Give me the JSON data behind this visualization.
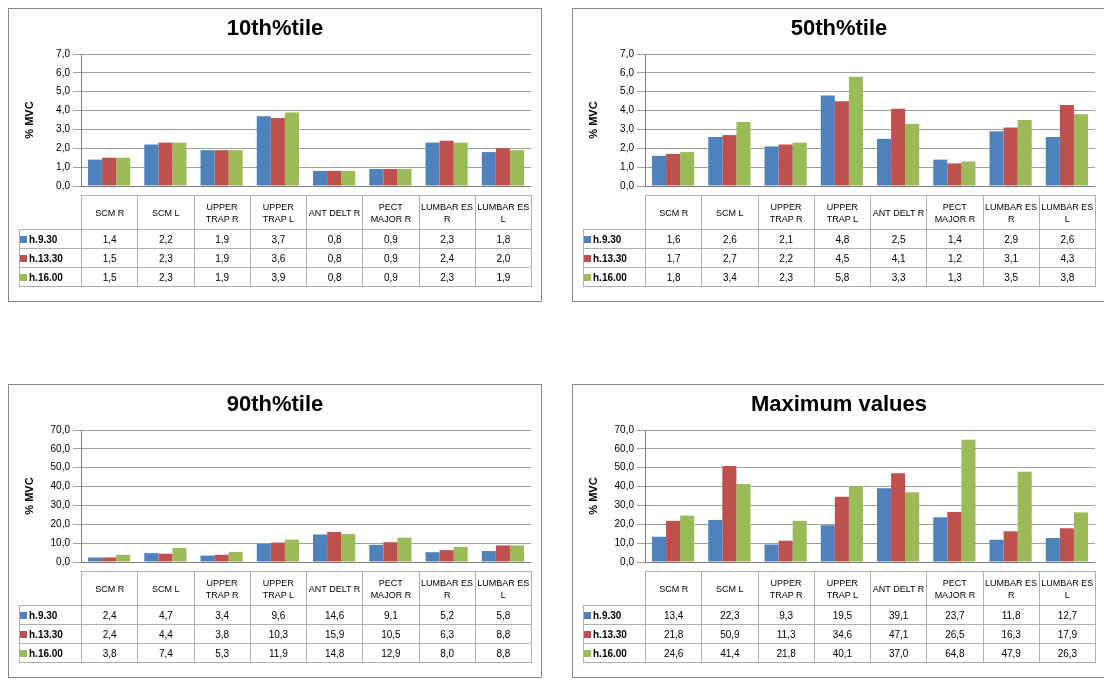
{
  "chart_data": [
    {
      "type": "bar",
      "title": "10th%tile",
      "ylabel": "% MVC",
      "categories": [
        "SCM R",
        "SCM L",
        "UPPER TRAP R",
        "UPPER TRAP L",
        "ANT DELT R",
        "PECT MAJOR R",
        "LUMBAR ES R",
        "LUMBAR ES L"
      ],
      "series": [
        {
          "name": "h.9.30",
          "color": "#4f81bd",
          "values": [
            1.4,
            2.2,
            1.9,
            3.7,
            0.8,
            0.9,
            2.3,
            1.8
          ],
          "value_labels": [
            "1,4",
            "2,2",
            "1,9",
            "3,7",
            "0,8",
            "0,9",
            "2,3",
            "1,8"
          ]
        },
        {
          "name": "h.13.30",
          "color": "#c0504d",
          "values": [
            1.5,
            2.3,
            1.9,
            3.6,
            0.8,
            0.9,
            2.4,
            2.0
          ],
          "value_labels": [
            "1,5",
            "2,3",
            "1,9",
            "3,6",
            "0,8",
            "0,9",
            "2,4",
            "2,0"
          ]
        },
        {
          "name": "h.16.00",
          "color": "#9bbb59",
          "values": [
            1.5,
            2.3,
            1.9,
            3.9,
            0.8,
            0.9,
            2.3,
            1.9
          ],
          "value_labels": [
            "1,5",
            "2,3",
            "1,9",
            "3,9",
            "0,8",
            "0,9",
            "2,3",
            "1,9"
          ]
        }
      ],
      "ylim": [
        0,
        7
      ],
      "yticks": [
        {
          "value": 0,
          "label": "0,0"
        },
        {
          "value": 1,
          "label": "1,0"
        },
        {
          "value": 2,
          "label": "2,0"
        },
        {
          "value": 3,
          "label": "3,0"
        },
        {
          "value": 4,
          "label": "4,0"
        },
        {
          "value": 5,
          "label": "5,0"
        },
        {
          "value": 6,
          "label": "6,0"
        },
        {
          "value": 7,
          "label": "7,0"
        }
      ],
      "grid": "y",
      "legend": "bottom"
    },
    {
      "type": "bar",
      "title": "50th%tile",
      "ylabel": "% MVC",
      "categories": [
        "SCM R",
        "SCM L",
        "UPPER TRAP R",
        "UPPER TRAP L",
        "ANT DELT R",
        "PECT MAJOR R",
        "LUMBAR ES R",
        "LUMBAR ES L"
      ],
      "series": [
        {
          "name": "h.9.30",
          "color": "#4f81bd",
          "values": [
            1.6,
            2.6,
            2.1,
            4.8,
            2.5,
            1.4,
            2.9,
            2.6
          ],
          "value_labels": [
            "1,6",
            "2,6",
            "2,1",
            "4,8",
            "2,5",
            "1,4",
            "2,9",
            "2,6"
          ]
        },
        {
          "name": "h.13.30",
          "color": "#c0504d",
          "values": [
            1.7,
            2.7,
            2.2,
            4.5,
            4.1,
            1.2,
            3.1,
            4.3
          ],
          "value_labels": [
            "1,7",
            "2,7",
            "2,2",
            "4,5",
            "4,1",
            "1,2",
            "3,1",
            "4,3"
          ]
        },
        {
          "name": "h.16.00",
          "color": "#9bbb59",
          "values": [
            1.8,
            3.4,
            2.3,
            5.8,
            3.3,
            1.3,
            3.5,
            3.8
          ],
          "value_labels": [
            "1,8",
            "3,4",
            "2,3",
            "5,8",
            "3,3",
            "1,3",
            "3,5",
            "3,8"
          ]
        }
      ],
      "ylim": [
        0,
        7
      ],
      "yticks": [
        {
          "value": 0,
          "label": "0,0"
        },
        {
          "value": 1,
          "label": "1,0"
        },
        {
          "value": 2,
          "label": "2,0"
        },
        {
          "value": 3,
          "label": "3,0"
        },
        {
          "value": 4,
          "label": "4,0"
        },
        {
          "value": 5,
          "label": "5,0"
        },
        {
          "value": 6,
          "label": "6,0"
        },
        {
          "value": 7,
          "label": "7,0"
        }
      ],
      "grid": "y",
      "legend": "bottom"
    },
    {
      "type": "bar",
      "title": "90th%tile",
      "ylabel": "% MVC",
      "categories": [
        "SCM R",
        "SCM L",
        "UPPER TRAP R",
        "UPPER TRAP L",
        "ANT DELT R",
        "PECT MAJOR R",
        "LUMBAR ES R",
        "LUMBAR ES L"
      ],
      "series": [
        {
          "name": "h.9.30",
          "color": "#4f81bd",
          "values": [
            2.4,
            4.7,
            3.4,
            9.6,
            14.6,
            9.1,
            5.2,
            5.8
          ],
          "value_labels": [
            "2,4",
            "4,7",
            "3,4",
            "9,6",
            "14,6",
            "9,1",
            "5,2",
            "5,8"
          ]
        },
        {
          "name": "h.13.30",
          "color": "#c0504d",
          "values": [
            2.4,
            4.4,
            3.8,
            10.3,
            15.9,
            10.5,
            6.3,
            8.8
          ],
          "value_labels": [
            "2,4",
            "4,4",
            "3,8",
            "10,3",
            "15,9",
            "10,5",
            "6,3",
            "8,8"
          ]
        },
        {
          "name": "h.16.00",
          "color": "#9bbb59",
          "values": [
            3.8,
            7.4,
            5.3,
            11.9,
            14.8,
            12.9,
            8.0,
            8.8
          ],
          "value_labels": [
            "3,8",
            "7,4",
            "5,3",
            "11,9",
            "14,8",
            "12,9",
            "8,0",
            "8,8"
          ]
        }
      ],
      "ylim": [
        0,
        70
      ],
      "yticks": [
        {
          "value": 0,
          "label": "0,0"
        },
        {
          "value": 10,
          "label": "10,0"
        },
        {
          "value": 20,
          "label": "20,0"
        },
        {
          "value": 30,
          "label": "30,0"
        },
        {
          "value": 40,
          "label": "40,0"
        },
        {
          "value": 50,
          "label": "50,0"
        },
        {
          "value": 60,
          "label": "60,0"
        },
        {
          "value": 70,
          "label": "70,0"
        }
      ],
      "grid": "y",
      "legend": "bottom"
    },
    {
      "type": "bar",
      "title": "Maximum values",
      "ylabel": "% MVC",
      "categories": [
        "SCM R",
        "SCM L",
        "UPPER TRAP R",
        "UPPER TRAP L",
        "ANT DELT R",
        "PECT MAJOR R",
        "LUMBAR ES R",
        "LUMBAR ES L"
      ],
      "series": [
        {
          "name": "h.9.30",
          "color": "#4f81bd",
          "values": [
            13.4,
            22.3,
            9.3,
            19.5,
            39.1,
            23.7,
            11.8,
            12.7
          ],
          "value_labels": [
            "13,4",
            "22,3",
            "9,3",
            "19,5",
            "39,1",
            "23,7",
            "11,8",
            "12,7"
          ]
        },
        {
          "name": "h.13.30",
          "color": "#c0504d",
          "values": [
            21.8,
            50.9,
            11.3,
            34.6,
            47.1,
            26.5,
            16.3,
            17.9
          ],
          "value_labels": [
            "21,8",
            "50,9",
            "11,3",
            "34,6",
            "47,1",
            "26,5",
            "16,3",
            "17,9"
          ]
        },
        {
          "name": "h.16.00",
          "color": "#9bbb59",
          "values": [
            24.6,
            41.4,
            21.8,
            40.1,
            37.0,
            64.8,
            47.9,
            26.3
          ],
          "value_labels": [
            "24,6",
            "41,4",
            "21,8",
            "40,1",
            "37,0",
            "64,8",
            "47,9",
            "26,3"
          ]
        }
      ],
      "ylim": [
        0,
        70
      ],
      "yticks": [
        {
          "value": 0,
          "label": "0,0"
        },
        {
          "value": 10,
          "label": "10,0"
        },
        {
          "value": 20,
          "label": "20,0"
        },
        {
          "value": 30,
          "label": "30,0"
        },
        {
          "value": 40,
          "label": "40,0"
        },
        {
          "value": 50,
          "label": "50,0"
        },
        {
          "value": 60,
          "label": "60,0"
        },
        {
          "value": 70,
          "label": "70,0"
        }
      ],
      "grid": "y",
      "legend": "bottom"
    }
  ]
}
